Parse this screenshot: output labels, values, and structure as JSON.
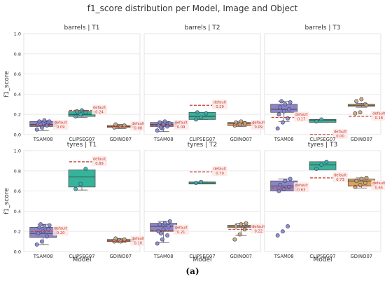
{
  "chart_data": {
    "type": "box",
    "title": "f1_score distribution per Model, Image and Object",
    "xlabel": "Model",
    "ylabel": "f1_score",
    "categories": [
      "TSAM08",
      "CLIPSEG07",
      "GDINO07"
    ],
    "colors": {
      "TSAM08": "#8c84c8",
      "CLIPSEG07": "#36b49b",
      "GDINO07": "#d9a55a",
      "default_line": "#c0392b"
    },
    "ylim": [
      0,
      1
    ],
    "yticks": [
      "0.0",
      "0.2",
      "0.4",
      "0.6",
      "0.8",
      "1.0"
    ],
    "default_label": "default",
    "grid": true,
    "panels": [
      {
        "title": "barrels | T1",
        "boxes": [
          {
            "model": "TSAM08",
            "q1": 0.08,
            "median": 0.1,
            "q3": 0.13,
            "whisker_low": 0.04,
            "whisker_high": 0.14,
            "points": [
              0.05,
              0.07,
              0.09,
              0.1,
              0.11,
              0.12,
              0.13,
              0.14,
              0.13,
              0.1
            ],
            "default": 0.09,
            "default_text": "0.09"
          },
          {
            "model": "CLIPSEG07",
            "q1": 0.18,
            "median": 0.2,
            "q3": 0.23,
            "whisker_low": 0.17,
            "whisker_high": 0.24,
            "points": [
              0.18,
              0.2,
              0.22,
              0.23,
              0.24
            ],
            "default": 0.24,
            "default_text": "0.24"
          },
          {
            "model": "GDINO07",
            "q1": 0.07,
            "median": 0.08,
            "q3": 0.09,
            "whisker_low": 0.06,
            "whisker_high": 0.1,
            "points": [
              0.07,
              0.08,
              0.09,
              0.1,
              0.08
            ],
            "default": 0.08,
            "default_text": "0.08"
          }
        ]
      },
      {
        "title": "barrels | T2",
        "boxes": [
          {
            "model": "TSAM08",
            "q1": 0.08,
            "median": 0.1,
            "q3": 0.12,
            "whisker_low": 0.03,
            "whisker_high": 0.13,
            "points": [
              0.04,
              0.06,
              0.08,
              0.09,
              0.1,
              0.11,
              0.12,
              0.13,
              0.11,
              0.07
            ],
            "default": 0.09,
            "default_text": "0.09"
          },
          {
            "model": "CLIPSEG07",
            "q1": 0.15,
            "median": 0.18,
            "q3": 0.22,
            "whisker_low": 0.15,
            "whisker_high": 0.22,
            "points": [
              0.15,
              0.17,
              0.21,
              0.22
            ],
            "default": 0.29,
            "default_text": "0.29"
          },
          {
            "model": "GDINO07",
            "q1": 0.09,
            "median": 0.11,
            "q3": 0.12,
            "whisker_low": 0.08,
            "whisker_high": 0.13,
            "points": [
              0.09,
              0.1,
              0.11,
              0.12,
              0.13
            ],
            "default": 0.09,
            "default_text": "0.09"
          }
        ]
      },
      {
        "title": "barrels | T3",
        "boxes": [
          {
            "model": "TSAM08",
            "q1": 0.22,
            "median": 0.25,
            "q3": 0.3,
            "whisker_low": 0.13,
            "whisker_high": 0.33,
            "points": [
              0.06,
              0.12,
              0.16,
              0.2,
              0.23,
              0.25,
              0.27,
              0.3,
              0.32,
              0.33
            ],
            "default": 0.17,
            "default_text": "0.17"
          },
          {
            "model": "CLIPSEG07",
            "q1": 0.12,
            "median": 0.14,
            "q3": 0.15,
            "whisker_low": 0.12,
            "whisker_high": 0.15,
            "points": [
              0.13,
              0.15
            ],
            "default": 0.0,
            "default_text": "0.00"
          },
          {
            "model": "GDINO07",
            "q1": 0.28,
            "median": 0.29,
            "q3": 0.3,
            "whisker_low": 0.27,
            "whisker_high": 0.31,
            "points": [
              0.21,
              0.22,
              0.3,
              0.33,
              0.35,
              0.29
            ],
            "default": 0.18,
            "default_text": "0.18"
          }
        ]
      },
      {
        "title": "tyres | T1",
        "boxes": [
          {
            "model": "TSAM08",
            "q1": 0.14,
            "median": 0.18,
            "q3": 0.24,
            "whisker_low": 0.07,
            "whisker_high": 0.27,
            "points": [
              0.07,
              0.1,
              0.15,
              0.18,
              0.2,
              0.22,
              0.24,
              0.25,
              0.26,
              0.27
            ],
            "default": 0.2,
            "default_text": "0.20"
          },
          {
            "model": "CLIPSEG07",
            "q1": 0.64,
            "median": 0.74,
            "q3": 0.81,
            "whisker_low": 0.61,
            "whisker_high": 0.81,
            "points": [
              0.62,
              0.67,
              0.82
            ],
            "default": 0.89,
            "default_text": "0.89"
          },
          {
            "model": "GDINO07",
            "q1": 0.1,
            "median": 0.11,
            "q3": 0.12,
            "whisker_low": 0.09,
            "whisker_high": 0.13,
            "points": [
              0.1,
              0.11,
              0.12,
              0.13,
              0.1
            ],
            "default": 0.1,
            "default_text": "0.10"
          }
        ]
      },
      {
        "title": "tyres | T2",
        "boxes": [
          {
            "model": "TSAM08",
            "q1": 0.2,
            "median": 0.25,
            "q3": 0.28,
            "whisker_low": 0.09,
            "whisker_high": 0.3,
            "points": [
              0.08,
              0.12,
              0.16,
              0.2,
              0.22,
              0.25,
              0.27,
              0.28,
              0.3,
              0.18
            ],
            "default": 0.21,
            "default_text": "0.21"
          },
          {
            "model": "CLIPSEG07",
            "q1": 0.67,
            "median": 0.68,
            "q3": 0.69,
            "whisker_low": 0.67,
            "whisker_high": 0.69,
            "points": [
              0.68,
              0.69
            ],
            "default": 0.79,
            "default_text": "0.79"
          },
          {
            "model": "GDINO07",
            "q1": 0.24,
            "median": 0.25,
            "q3": 0.26,
            "whisker_low": 0.16,
            "whisker_high": 0.28,
            "points": [
              0.12,
              0.17,
              0.22,
              0.25,
              0.27,
              0.28
            ],
            "default": 0.22,
            "default_text": "0.22"
          }
        ]
      },
      {
        "title": "tyres | T3",
        "boxes": [
          {
            "model": "TSAM08",
            "q1": 0.6,
            "median": 0.65,
            "q3": 0.7,
            "whisker_low": 0.6,
            "whisker_high": 0.72,
            "points": [
              0.16,
              0.2,
              0.25,
              0.6,
              0.62,
              0.64,
              0.66,
              0.7,
              0.72
            ],
            "default": 0.63,
            "default_text": "0.63"
          },
          {
            "model": "CLIPSEG07",
            "q1": 0.81,
            "median": 0.86,
            "q3": 0.89,
            "whisker_low": 0.81,
            "whisker_high": 0.89,
            "points": [
              0.82,
              0.86,
              0.89
            ],
            "default": 0.73,
            "default_text": "0.73"
          },
          {
            "model": "GDINO07",
            "q1": 0.65,
            "median": 0.7,
            "q3": 0.72,
            "whisker_low": 0.63,
            "whisker_high": 0.73,
            "points": [
              0.64,
              0.66,
              0.68,
              0.7,
              0.72,
              0.73
            ],
            "default": 0.65,
            "default_text": "0.65"
          }
        ]
      }
    ]
  },
  "caption": "(a)"
}
